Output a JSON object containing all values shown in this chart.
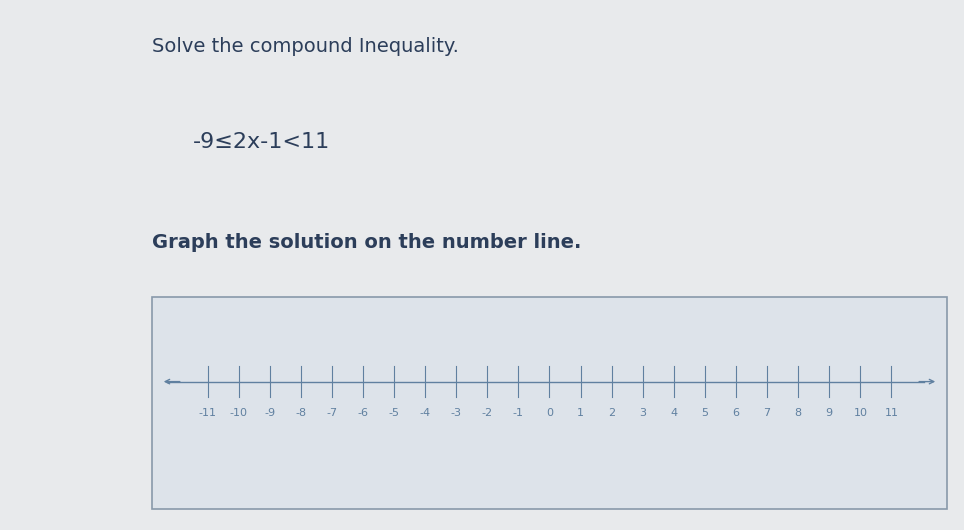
{
  "title_line1": "Solve the compound Inequality.",
  "inequality": "-9≤2x-1<11",
  "instruction": "Graph the solution on the number line.",
  "tick_labels": [
    -11,
    -10,
    -9,
    -8,
    -7,
    -6,
    -5,
    -4,
    -3,
    -2,
    -1,
    0,
    1,
    2,
    3,
    4,
    5,
    6,
    7,
    8,
    9,
    10,
    11
  ],
  "bg_main": "#e8eaec",
  "bg_left_dark": "#8a9ab0",
  "bg_brown": "#7a6050",
  "box_bg": "#dde3ea",
  "box_border": "#8899aa",
  "text_color": "#2c3e5a",
  "axis_color": "#6080a0",
  "font_size_title": 14,
  "font_size_ineq": 16,
  "font_size_instr": 14,
  "font_size_ticks": 8
}
